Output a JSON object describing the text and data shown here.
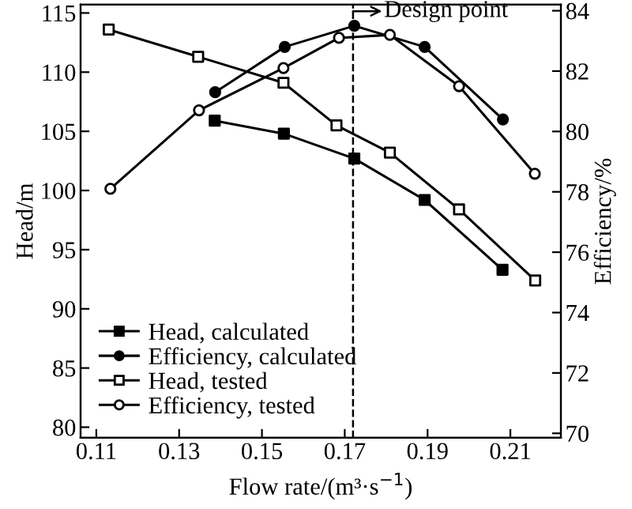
{
  "chart_data": {
    "type": "line",
    "xlabel": "Flow rate/(m³·s$^{−1}$)",
    "ylabel": "Head/m",
    "y2label": "Efficiency/%",
    "xlim": [
      0.1062,
      0.2222
    ],
    "xticks": [
      0.11,
      0.13,
      0.15,
      0.17,
      0.19,
      0.21
    ],
    "ylim": [
      79.1,
      115.7
    ],
    "yticks": [
      80,
      85,
      90,
      95,
      100,
      105,
      110,
      115
    ],
    "y2lim": [
      69.85,
      84.2
    ],
    "y2ticks": [
      70,
      72,
      74,
      76,
      78,
      80,
      82,
      84
    ],
    "legend": "bottom left",
    "line_style": "solid",
    "ref_lines": [
      {
        "axis": "x",
        "value": 0.172,
        "label": "Design point",
        "line_style": "dashed",
        "color": "#000000"
      }
    ],
    "series": [
      {
        "name": "Head, calculated",
        "color": "#000000",
        "marker": "square",
        "colors": [
          "#000000",
          "#000000",
          "#000000",
          "#000000",
          "#000000"
        ],
        "x": [
          0.1386,
          0.1553,
          0.1723,
          0.1893,
          0.2081
        ],
        "values": [
          105.9,
          104.8,
          102.7,
          99.2,
          93.3
        ]
      },
      {
        "name": "Efficiency, calculated",
        "color": "#000000",
        "marker": "circle",
        "colors": [
          "#000000",
          "#000000",
          "#000000",
          "#000000",
          "#000000"
        ],
        "axis": "y2",
        "x": [
          0.1387,
          0.1555,
          0.1723,
          0.1893,
          0.2082
        ],
        "values": [
          81.3,
          82.8,
          83.5,
          82.8,
          80.4
        ]
      },
      {
        "name": "Head, tested",
        "color": "#000000",
        "marker": "square",
        "colors": [
          "#ffffff",
          "#ffffff",
          "#ffffff",
          "#ffffff",
          "#ffffff",
          "#ffffff",
          "#ffffff"
        ],
        "x": [
          0.113,
          0.1346,
          0.1552,
          0.168,
          0.1809,
          0.1976,
          0.216
        ],
        "values": [
          113.6,
          111.3,
          109.1,
          105.5,
          103.2,
          98.4,
          92.4
        ]
      },
      {
        "name": "Efficiency, tested",
        "color": "#000000",
        "marker": "circle",
        "colors": [
          "#ffffff",
          "#ffffff",
          "#ffffff",
          "#ffffff",
          "#ffffff",
          "#ffffff",
          "#ffffff"
        ],
        "axis": "y2",
        "x": [
          0.1134,
          0.1348,
          0.1552,
          0.1686,
          0.1809,
          0.1976,
          0.2159
        ],
        "values": [
          78.1,
          80.7,
          82.1,
          83.1,
          83.2,
          81.5,
          78.6
        ]
      }
    ]
  }
}
